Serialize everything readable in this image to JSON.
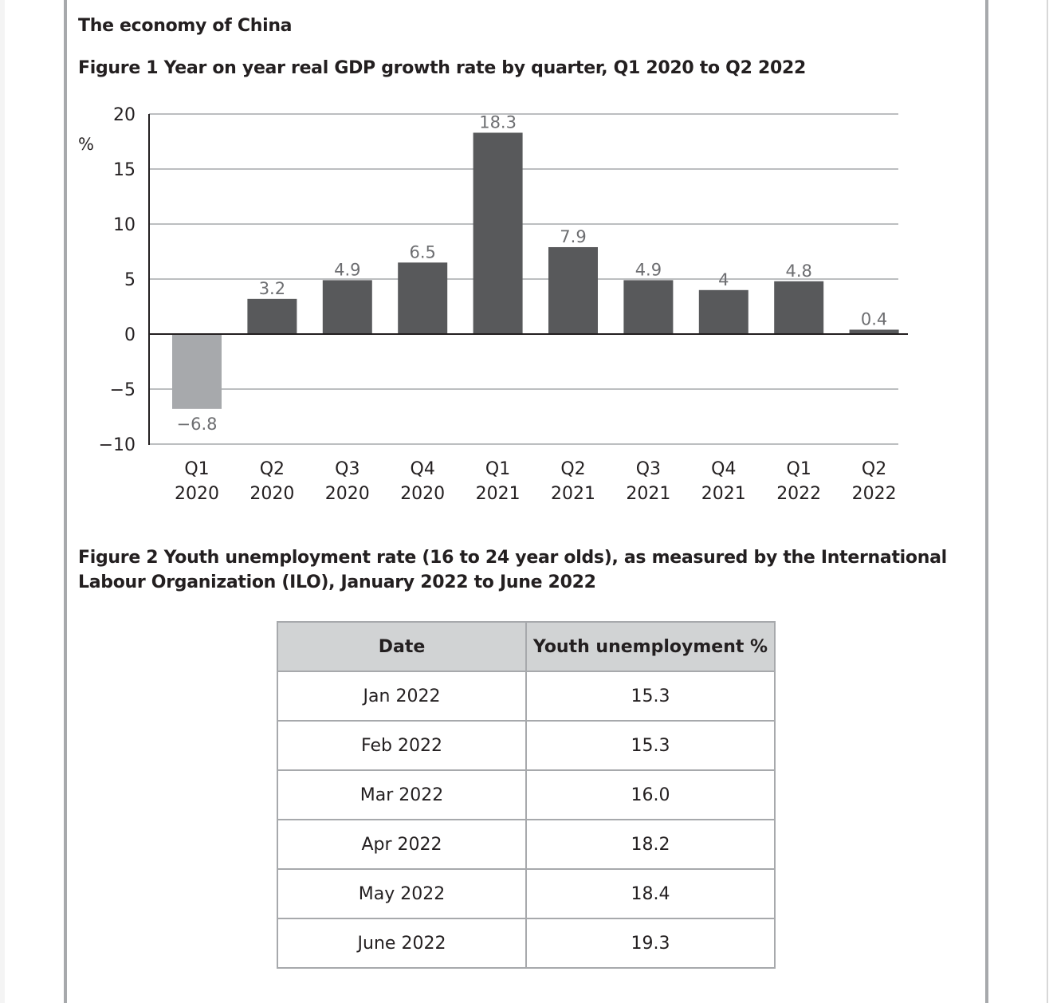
{
  "heading": "The economy of China",
  "figure1_title": "Figure 1 Year on year real GDP growth rate by quarter, Q1 2020 to Q2 2022",
  "figure2_title": "Figure 2 Youth unemployment rate (16 to 24 year olds), as measured by the International Labour Organization (ILO), January 2022 to June 2022",
  "colors": {
    "positive_bar": "#58595b",
    "negative_bar": "#a7a9ac",
    "label": "#6d6e71",
    "grid": "#bcbec0"
  },
  "chart_data": {
    "type": "bar",
    "title": "Figure 1 Year on year real GDP growth rate by quarter, Q1 2020 to Q2 2022",
    "ylabel": "%",
    "xlabel": "",
    "ylim": [
      -10,
      20
    ],
    "yticks": [
      20,
      15,
      10,
      5,
      0,
      -5,
      -10
    ],
    "ytick_labels": [
      "20",
      "15",
      "10",
      "5",
      "0",
      "−5",
      "−10"
    ],
    "grid": true,
    "categories": [
      [
        "Q1",
        "2020"
      ],
      [
        "Q2",
        "2020"
      ],
      [
        "Q3",
        "2020"
      ],
      [
        "Q4",
        "2020"
      ],
      [
        "Q1",
        "2021"
      ],
      [
        "Q2",
        "2021"
      ],
      [
        "Q3",
        "2021"
      ],
      [
        "Q4",
        "2021"
      ],
      [
        "Q1",
        "2022"
      ],
      [
        "Q2",
        "2022"
      ]
    ],
    "values": [
      -6.8,
      3.2,
      4.9,
      6.5,
      18.3,
      7.9,
      4.9,
      4,
      4.8,
      0.4
    ],
    "value_labels": [
      "−6.8",
      "3.2",
      "4.9",
      "6.5",
      "18.3",
      "7.9",
      "4.9",
      "4",
      "4.8",
      "0.4"
    ]
  },
  "table": {
    "headers": [
      "Date",
      "Youth unemployment %"
    ],
    "rows": [
      [
        "Jan 2022",
        "15.3"
      ],
      [
        "Feb 2022",
        "15.3"
      ],
      [
        "Mar 2022",
        "16.0"
      ],
      [
        "Apr 2022",
        "18.2"
      ],
      [
        "May 2022",
        "18.4"
      ],
      [
        "June 2022",
        "19.3"
      ]
    ]
  }
}
